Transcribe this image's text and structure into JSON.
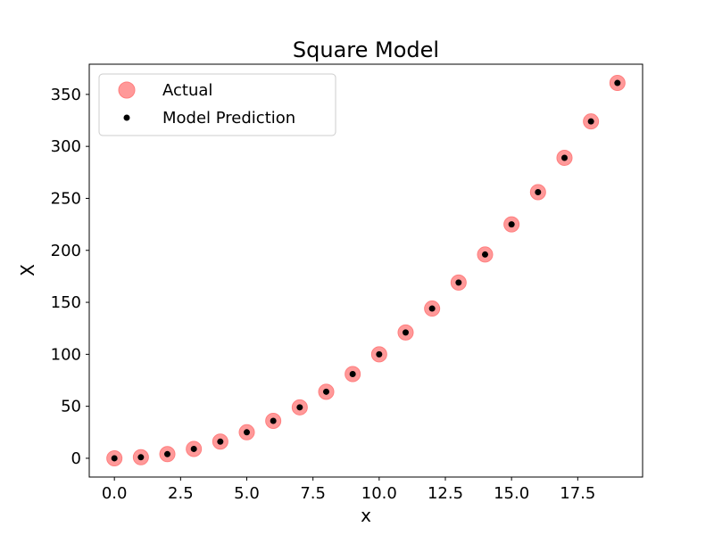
{
  "chart_data": {
    "type": "scatter",
    "title": "Square Model",
    "xlabel": "x",
    "ylabel": "X",
    "xlim": [
      -0.95,
      19.95
    ],
    "ylim": [
      -18.05,
      379.05
    ],
    "xticks": [
      0.0,
      2.5,
      5.0,
      7.5,
      10.0,
      12.5,
      15.0,
      17.5
    ],
    "xtick_labels": [
      "0.0",
      "2.5",
      "5.0",
      "7.5",
      "10.0",
      "12.5",
      "15.0",
      "17.5"
    ],
    "yticks": [
      0,
      50,
      100,
      150,
      200,
      250,
      300,
      350
    ],
    "ytick_labels": [
      "0",
      "50",
      "100",
      "150",
      "200",
      "250",
      "300",
      "350"
    ],
    "grid": false,
    "legend_position": "top-left",
    "x": [
      0,
      1,
      2,
      3,
      4,
      5,
      6,
      7,
      8,
      9,
      10,
      11,
      12,
      13,
      14,
      15,
      16,
      17,
      18,
      19
    ],
    "series": [
      {
        "name": "Actual",
        "color": "#ff7f7f",
        "values": [
          0,
          1,
          4,
          9,
          16,
          25,
          36,
          49,
          64,
          81,
          100,
          121,
          144,
          169,
          196,
          225,
          256,
          289,
          324,
          361
        ]
      },
      {
        "name": "Model Prediction",
        "color": "#000000",
        "values": [
          0,
          1,
          4,
          9,
          16,
          25,
          36,
          49,
          64,
          81,
          100,
          121,
          144,
          169,
          196,
          225,
          256,
          289,
          324,
          361
        ]
      }
    ]
  }
}
